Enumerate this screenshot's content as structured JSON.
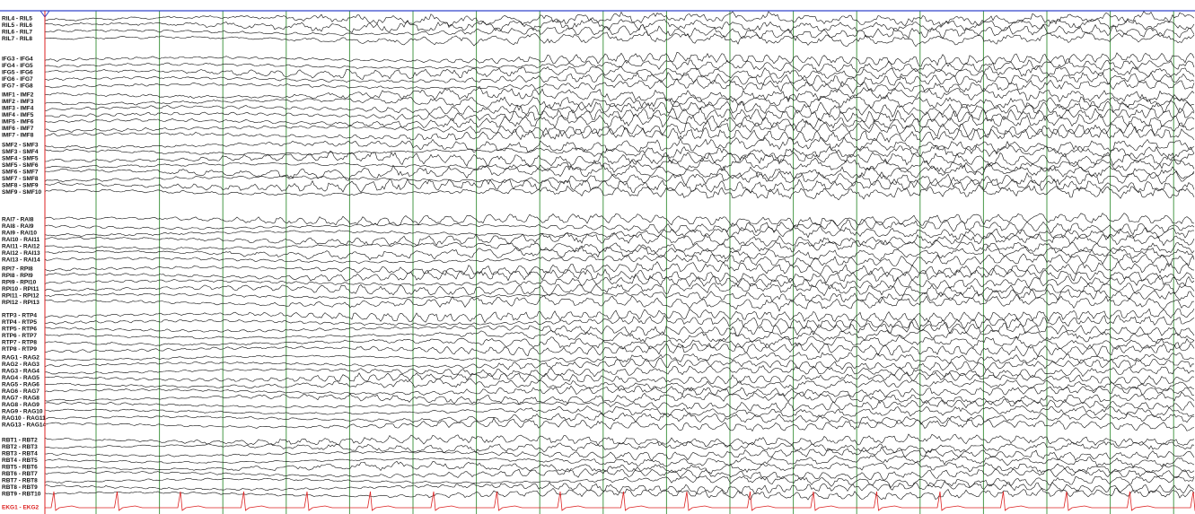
{
  "channel_groups": [
    {
      "channels": [
        "RIL4 - RIL5",
        "RIL5 - RIL6",
        "RIL6 - RIL7",
        "RIL7 - RIL8"
      ]
    },
    {
      "channels": [
        "IFG3 - IFG4",
        "IFG4 - IFG5",
        "IFG5 - IFG6",
        "IFG6 - IFG7",
        "IFG7 - IFG8"
      ]
    },
    {
      "channels": [
        "IMF1 - IMF2",
        "IMF2 - IMF3",
        "IMF3 - IMF4",
        "IMF4 - IMF5",
        "IMF5 - IMF6",
        "IMF6 - IMF7",
        "IMF7 - IMF8"
      ]
    },
    {
      "channels": [
        "SMF2 - SMF3",
        "SMF3 - SMF4",
        "SMF4 - SMF5",
        "SMF5 - SMF6",
        "SMF6 - SMF7",
        "SMF7 - SMF8",
        "SMF8 - SMF9",
        "SMF9 - SMF10"
      ]
    },
    {
      "channels": [
        "RAI7 - RAI8",
        "RAI8 - RAI9",
        "RAI9 - RAI10",
        "RAI10 - RAI11",
        "RAI11 - RAI12",
        "RAI12 - RAI13",
        "RAI13 - RAI14"
      ]
    },
    {
      "channels": [
        "RPI7 - RPI8",
        "RPI8 - RPI9",
        "RPI9 - RPI10",
        "RPI10 - RPI11",
        "RPI11 - RPI12",
        "RPI12 - RPI13"
      ]
    },
    {
      "channels": [
        "RTP3 - RTP4",
        "RTP4 - RTP5",
        "RTP5 - RTP6",
        "RTP6 - RTP7",
        "RTP7 - RTP8",
        "RTP8 - RTP9"
      ]
    },
    {
      "channels": [
        "RAG1 - RAG2",
        "RAG2 - RAG3",
        "RAG3 - RAG4",
        "RAG4 - RAG5",
        "RAG5 - RAG6",
        "RAG6 - RAG7",
        "RAG7 - RAG8",
        "RAG8 - RAG9",
        "RAG9 - RAG10",
        "RAG10 - RAG11",
        "RAG13 - RAG14"
      ]
    },
    {
      "channels": [
        "RBT1 - RBT2",
        "RBT2 - RBT3",
        "RBT3 - RBT4",
        "RBT4 - RBT5",
        "RBT5 - RBT6",
        "RBT6 - RBT7",
        "RBT7 - RBT8",
        "RBT8 - RBT9",
        "RBT9 - RBT10"
      ]
    }
  ],
  "ekg": "EKG1 - EKG2"
}
